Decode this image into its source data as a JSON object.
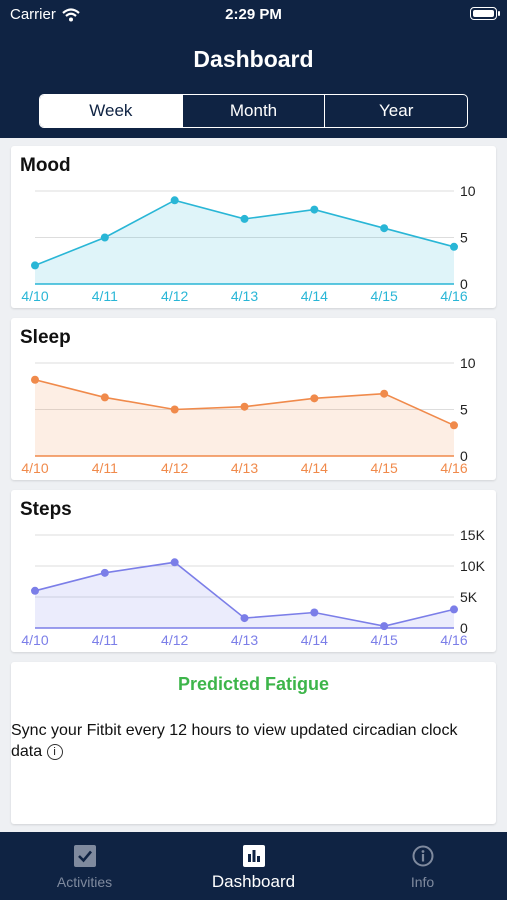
{
  "status_bar": {
    "carrier": "Carrier",
    "time": "2:29 PM"
  },
  "header": {
    "title": "Dashboard"
  },
  "segments": [
    {
      "label": "Week",
      "active": true
    },
    {
      "label": "Month",
      "active": false
    },
    {
      "label": "Year",
      "active": false
    }
  ],
  "colors": {
    "header_bg": "#0f2343",
    "mood": "#29b6d6",
    "sleep": "#f08a4b",
    "steps": "#7b7ee8",
    "fatigue": "#3db54a"
  },
  "chart_data": [
    {
      "type": "area",
      "title": "Mood",
      "categories": [
        "4/10",
        "4/11",
        "4/12",
        "4/13",
        "4/14",
        "4/15",
        "4/16"
      ],
      "values": [
        2,
        5,
        9,
        7,
        8,
        6,
        4
      ],
      "ylim": [
        0,
        10
      ],
      "yticks": [
        "0",
        "5",
        "10"
      ],
      "ytick_values": [
        0,
        5,
        10
      ],
      "grid": true
    },
    {
      "type": "area",
      "title": "Sleep",
      "categories": [
        "4/10",
        "4/11",
        "4/12",
        "4/13",
        "4/14",
        "4/15",
        "4/16"
      ],
      "values": [
        8.2,
        6.3,
        5,
        5.3,
        6.2,
        6.7,
        3.3
      ],
      "ylim": [
        0,
        10
      ],
      "yticks": [
        "0",
        "5",
        "10"
      ],
      "ytick_values": [
        0,
        5,
        10
      ],
      "grid": true
    },
    {
      "type": "area",
      "title": "Steps",
      "categories": [
        "4/10",
        "4/11",
        "4/12",
        "4/13",
        "4/14",
        "4/15",
        "4/16"
      ],
      "values": [
        6000,
        8900,
        10600,
        1600,
        2500,
        300,
        3000
      ],
      "ylim": [
        0,
        15000
      ],
      "yticks": [
        "0",
        "5K",
        "10K",
        "15K"
      ],
      "ytick_values": [
        0,
        5000,
        10000,
        15000
      ],
      "grid": true
    }
  ],
  "fatigue": {
    "title": "Predicted Fatigue",
    "message": "Sync your Fitbit every 12 hours to view updated circadian clock data",
    "info_glyph": "i"
  },
  "tabs": [
    {
      "label": "Activities",
      "icon": "checkbox-icon",
      "active": false
    },
    {
      "label": "Dashboard",
      "icon": "bar-chart-icon",
      "active": true
    },
    {
      "label": "Info",
      "icon": "info-icon",
      "active": false
    }
  ]
}
